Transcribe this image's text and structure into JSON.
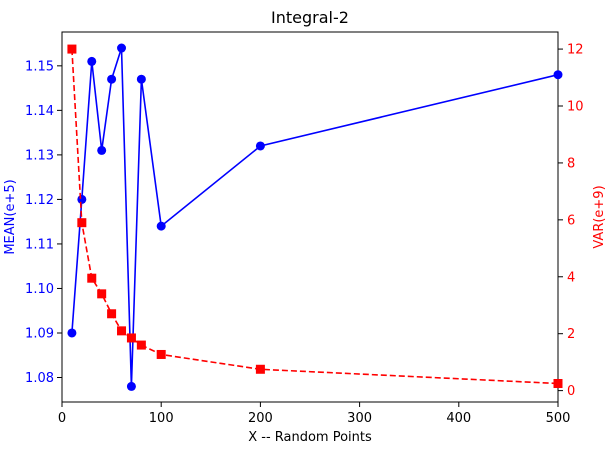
{
  "chart_data": {
    "type": "line",
    "title": "Integral-2",
    "xlabel": "X -- Random Points",
    "ylabel_left": "MEAN(e+5)",
    "ylabel_right": "VAR(e+9)",
    "xlim": [
      0,
      500
    ],
    "ylim_left": [
      1.0745,
      1.1576
    ],
    "ylim_right": [
      -0.4,
      12.6
    ],
    "x_ticks": [
      0,
      100,
      200,
      300,
      400,
      500
    ],
    "y_ticks_left": [
      1.08,
      1.09,
      1.1,
      1.11,
      1.12,
      1.13,
      1.14,
      1.15
    ],
    "y_ticks_right": [
      0,
      2,
      4,
      6,
      8,
      10,
      12
    ],
    "grid": false,
    "series": [
      {
        "axis": "left",
        "color": "#0000ff",
        "line_style": "solid",
        "marker": "circle",
        "x": [
          10,
          20,
          30,
          40,
          50,
          60,
          70,
          80,
          100,
          200,
          500
        ],
        "values": [
          1.09,
          1.12,
          1.151,
          1.131,
          1.147,
          1.154,
          1.078,
          1.147,
          1.114,
          1.132,
          1.148
        ]
      },
      {
        "axis": "right",
        "color": "#ff0000",
        "line_style": "dashed",
        "marker": "square",
        "x": [
          10,
          20,
          30,
          40,
          50,
          60,
          70,
          80,
          100,
          200,
          500
        ],
        "values": [
          12.0,
          5.9,
          3.95,
          3.4,
          2.7,
          2.1,
          1.85,
          1.6,
          1.27,
          0.75,
          0.25
        ]
      }
    ]
  }
}
